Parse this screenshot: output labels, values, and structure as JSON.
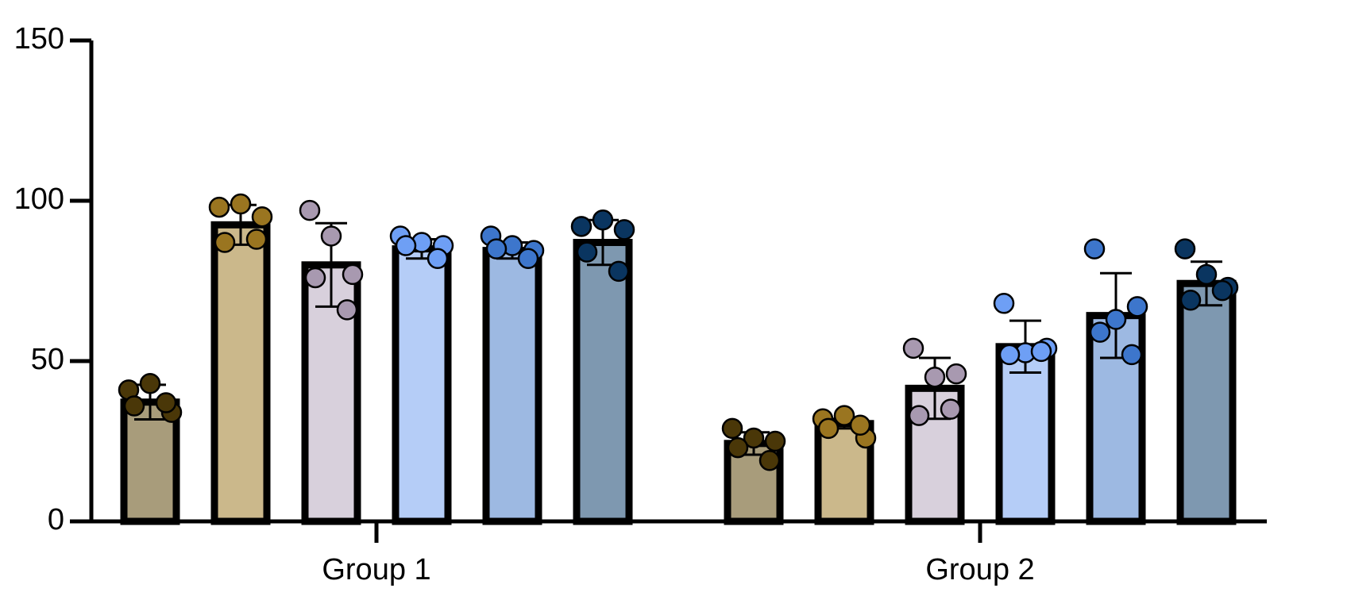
{
  "chart_data": {
    "type": "bar",
    "categories": [
      "Group 1",
      "Group 2"
    ],
    "ylim": [
      0,
      150
    ],
    "yticks": [
      0,
      50,
      100,
      150
    ],
    "series": [
      {
        "color": "#a89c7b",
        "point_color": "#4a3708",
        "values": [
          37.2,
          24.3
        ],
        "errors": [
          5.4,
          3.5
        ],
        "points": [
          [
            41,
            43,
            34,
            36,
            37
          ],
          [
            29,
            26,
            25,
            23,
            19
          ]
        ]
      },
      {
        "color": "#cbb88b",
        "point_color": "#9a7520",
        "values": [
          92.5,
          30.5
        ],
        "errors": [
          6.2,
          1.5
        ],
        "points": [
          [
            98,
            99,
            95,
            87,
            88
          ],
          [
            32,
            33,
            26,
            29,
            30
          ]
        ]
      },
      {
        "color": "#d8d0dc",
        "point_color": "#a899b0",
        "values": [
          80,
          41.5
        ],
        "errors": [
          13,
          9.5
        ],
        "points": [
          [
            97,
            89,
            77,
            76,
            66
          ],
          [
            54,
            45,
            46,
            33,
            35
          ]
        ]
      },
      {
        "color": "#b5cdf7",
        "point_color": "#6e9ff5",
        "values": [
          85,
          54.5
        ],
        "errors": [
          3,
          8.1
        ],
        "points": [
          [
            89,
            87,
            86,
            86,
            82
          ],
          [
            68,
            52.6,
            54,
            52,
            53
          ]
        ]
      },
      {
        "color": "#9db9e2",
        "point_color": "#3d76cc",
        "values": [
          84.5,
          64.2
        ],
        "errors": [
          2.5,
          13.2
        ],
        "points": [
          [
            89,
            86,
            84.5,
            85,
            82
          ],
          [
            85,
            63,
            67,
            59,
            52
          ]
        ]
      },
      {
        "color": "#7e98b0",
        "point_color": "#0a3560",
        "values": [
          87,
          74.2
        ],
        "errors": [
          7,
          6.8
        ],
        "points": [
          [
            92,
            94,
            91,
            84,
            78
          ],
          [
            85,
            77,
            73,
            69,
            72
          ]
        ]
      }
    ]
  }
}
